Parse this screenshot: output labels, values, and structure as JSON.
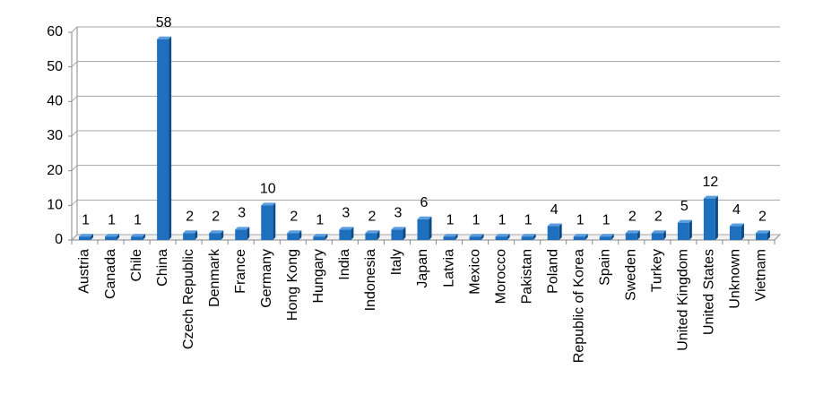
{
  "chart_data": {
    "type": "bar",
    "categories": [
      "Austria",
      "Canada",
      "Chile",
      "China",
      "Czech Republic",
      "Denmark",
      "France",
      "Germany",
      "Hong Kong",
      "Hungary",
      "India",
      "Indonesia",
      "Italy",
      "Japan",
      "Latvia",
      "Mexico",
      "Morocco",
      "Pakistan",
      "Poland",
      "Republic of Korea",
      "Spain",
      "Sweden",
      "Turkey",
      "United Kingdom",
      "United States",
      "Unknown",
      "Vietnam"
    ],
    "values": [
      1,
      1,
      1,
      58,
      2,
      2,
      3,
      10,
      2,
      1,
      3,
      2,
      3,
      6,
      1,
      1,
      1,
      1,
      4,
      1,
      1,
      2,
      2,
      5,
      12,
      4,
      2
    ],
    "color": "#1f6fbf",
    "ylim": [
      0,
      60
    ],
    "yticks": [
      0,
      10,
      20,
      30,
      40,
      50,
      60
    ],
    "grid": true
  }
}
